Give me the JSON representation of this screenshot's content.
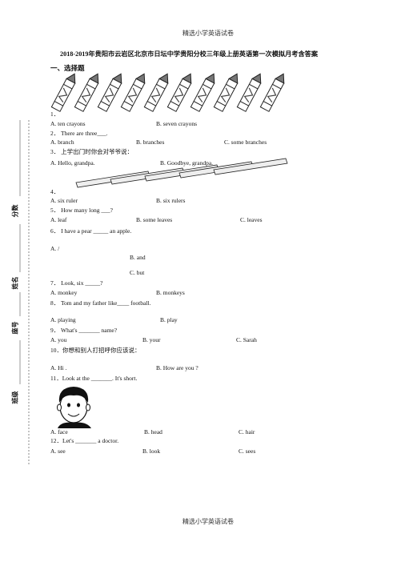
{
  "header": "精选小学英语试卷",
  "title": "2018-2019年贵阳市云岩区北京市日坛中学贵阳分校三年级上册英语第一次模拟月考含答案",
  "section": "一、选择题",
  "questions": [
    {
      "stem": "1．",
      "options": [
        "A. ten crayons",
        "B. seven crayons"
      ]
    },
    {
      "stem": "2． There are three___.",
      "options": [
        "A. branch",
        "B. branches",
        "C. some branches"
      ]
    },
    {
      "stem": "3． 上学出门时你会对爷爷说：",
      "options": [
        "A. Hello, grandpa.",
        "B. Goodbye, grandpa."
      ]
    },
    {
      "stem": "4．",
      "options": [
        "A. six ruler",
        "B. six rulers"
      ]
    },
    {
      "stem": "5． How many long ___?",
      "options": [
        "A. leaf",
        "B. some leaves",
        "C. leaves"
      ]
    },
    {
      "stem": "6． I have a pear _____ an apple.",
      "options": [
        "A. /",
        "B. and",
        "C. but"
      ]
    },
    {
      "stem": "7． Look, six _____?",
      "options": [
        "A. monkey",
        "B. monkeys"
      ]
    },
    {
      "stem": "8． Tom and my father like____ football.",
      "options": [
        "A. playing",
        "B. play"
      ]
    },
    {
      "stem": "9． What's _______ name?",
      "options": [
        "A. you",
        "B. your",
        "C. Sarah"
      ]
    },
    {
      "stem": "10．你想和别人打招呼你应该说：",
      "options": [
        "A. Hi .",
        "B. How are you ?"
      ]
    },
    {
      "stem": "11．Look at the _______. It's short.",
      "options": [
        "A. face",
        "B. head",
        "C. hair"
      ]
    },
    {
      "stem": "12．Let's _______ a doctor.",
      "options": [
        "A. see",
        "B. look",
        "C. sees"
      ]
    }
  ],
  "side_labels": [
    "分数",
    "姓名",
    "座号",
    "班级"
  ],
  "footer": "精选小学英语试卷"
}
